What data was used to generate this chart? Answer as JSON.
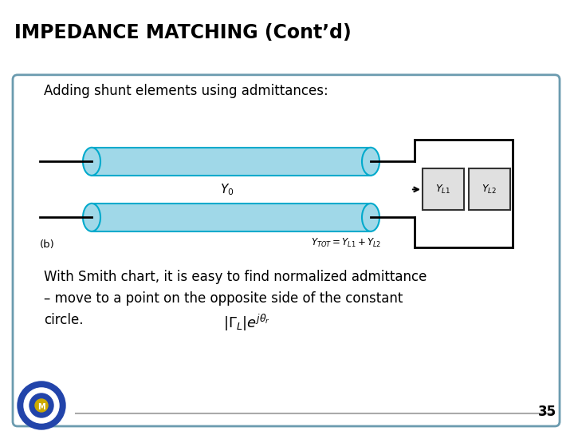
{
  "title": "IMPEDANCE MATCHING (Cont’d)",
  "header_bg": "#7B7FBF",
  "header_text_color": "#000000",
  "slide_bg": "#FFFFFF",
  "border_color": "#6B9BAF",
  "text1": "Adding shunt elements using admittances:",
  "text2": "With Smith chart, it is easy to find normalized admittance",
  "text3": "– move to a point on the opposite side of the constant",
  "text4": "circle.",
  "formula": "$|\\Gamma_L|e^{j\\theta_r}$",
  "label_b": "(b)",
  "label_Y0": "$Y_0$",
  "label_YL1": "$Y_{L1}$",
  "label_YL2": "$Y_{L2}$",
  "label_YTOT": "$Y_{TOT} = Y_{L1} + Y_{L2}$",
  "page_num": "35",
  "tube_color": "#A0D8E8",
  "tube_outline": "#00AACC",
  "box_color": "#E0E0E0",
  "box_outline": "#333333",
  "line_color": "#000000"
}
